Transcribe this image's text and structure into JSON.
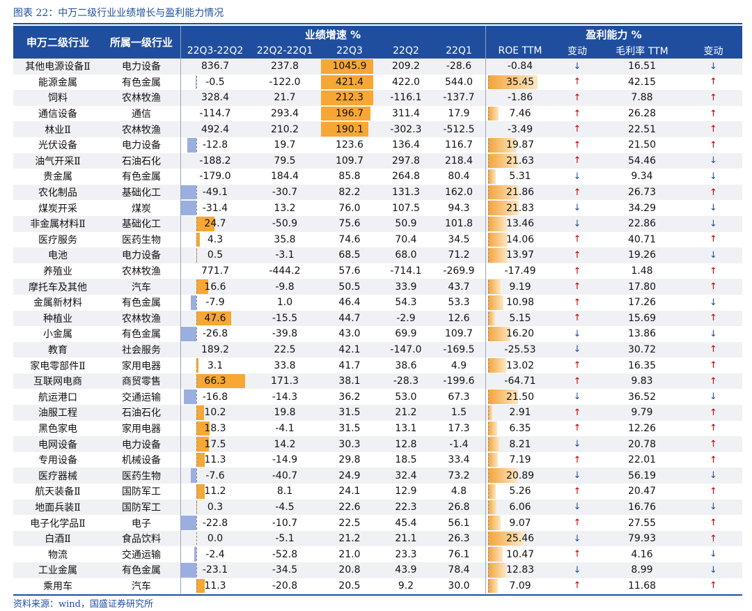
{
  "caption": "图表 22：中万二级行业业绩增长与盈利能力情况",
  "headers": {
    "col_industry": "申万二级行业",
    "col_parent": "所属一级行业",
    "group_growth": "业绩增速 %",
    "group_profit": "盈利能力 %",
    "sub": [
      "22Q3-22Q2",
      "22Q2-22Q1",
      "22Q3",
      "22Q2",
      "22Q1",
      "ROE TTM",
      "变动",
      "毛利率 TTM",
      "变动"
    ]
  },
  "rows": [
    {
      "name": "其他电源设备Ⅱ",
      "parent": "电力设备",
      "qoq32": "836.7",
      "qoq21": "237.8",
      "q3": "1045.9",
      "q2": "209.2",
      "q1": "-28.6",
      "roe": "-0.84",
      "roe_chg": "↓",
      "gm": "16.51",
      "gm_chg": "↓"
    },
    {
      "name": "能源金属",
      "parent": "有色金属",
      "qoq32": "-0.5",
      "qoq21": "-122.0",
      "q3": "421.4",
      "q2": "422.0",
      "q1": "544.0",
      "roe": "35.45",
      "roe_chg": "↑",
      "gm": "42.15",
      "gm_chg": "↑"
    },
    {
      "name": "饲料",
      "parent": "农林牧渔",
      "qoq32": "328.4",
      "qoq21": "21.7",
      "q3": "212.3",
      "q2": "-116.1",
      "q1": "-137.7",
      "roe": "-1.86",
      "roe_chg": "↑",
      "gm": "7.88",
      "gm_chg": "↑"
    },
    {
      "name": "通信设备",
      "parent": "通信",
      "qoq32": "-114.7",
      "qoq21": "293.4",
      "q3": "196.7",
      "q2": "311.4",
      "q1": "17.9",
      "roe": "7.46",
      "roe_chg": "↑",
      "gm": "26.28",
      "gm_chg": "↑"
    },
    {
      "name": "林业Ⅱ",
      "parent": "农林牧渔",
      "qoq32": "492.4",
      "qoq21": "210.2",
      "q3": "190.1",
      "q2": "-302.3",
      "q1": "-512.5",
      "roe": "-3.49",
      "roe_chg": "↑",
      "gm": "22.51",
      "gm_chg": "↑"
    },
    {
      "name": "光伏设备",
      "parent": "电力设备",
      "qoq32": "-12.8",
      "qoq21": "19.7",
      "q3": "123.6",
      "q2": "136.4",
      "q1": "116.7",
      "roe": "19.87",
      "roe_chg": "↑",
      "gm": "21.50",
      "gm_chg": "↑"
    },
    {
      "name": "油气开采Ⅱ",
      "parent": "石油石化",
      "qoq32": "-188.2",
      "qoq21": "79.5",
      "q3": "109.7",
      "q2": "297.8",
      "q1": "218.4",
      "roe": "21.63",
      "roe_chg": "↑",
      "gm": "54.46",
      "gm_chg": "↓"
    },
    {
      "name": "贵金属",
      "parent": "有色金属",
      "qoq32": "-179.0",
      "qoq21": "184.4",
      "q3": "85.8",
      "q2": "264.8",
      "q1": "80.4",
      "roe": "5.31",
      "roe_chg": "↓",
      "gm": "9.34",
      "gm_chg": "↓"
    },
    {
      "name": "农化制品",
      "parent": "基础化工",
      "qoq32": "-49.1",
      "qoq21": "-30.7",
      "q3": "82.2",
      "q2": "131.3",
      "q1": "162.0",
      "roe": "21.86",
      "roe_chg": "↑",
      "gm": "26.73",
      "gm_chg": "↑"
    },
    {
      "name": "煤炭开采",
      "parent": "煤炭",
      "qoq32": "-31.4",
      "qoq21": "13.2",
      "q3": "76.0",
      "q2": "107.5",
      "q1": "94.3",
      "roe": "21.83",
      "roe_chg": "↓",
      "gm": "34.29",
      "gm_chg": "↓"
    },
    {
      "name": "非金属材料Ⅱ",
      "parent": "基础化工",
      "qoq32": "24.7",
      "qoq21": "-50.9",
      "q3": "75.6",
      "q2": "50.9",
      "q1": "101.8",
      "roe": "13.46",
      "roe_chg": "↓",
      "gm": "22.86",
      "gm_chg": "↓"
    },
    {
      "name": "医疗服务",
      "parent": "医药生物",
      "qoq32": "4.3",
      "qoq21": "35.8",
      "q3": "74.6",
      "q2": "70.4",
      "q1": "34.5",
      "roe": "14.06",
      "roe_chg": "↑",
      "gm": "40.71",
      "gm_chg": "↑"
    },
    {
      "name": "电池",
      "parent": "电力设备",
      "qoq32": "0.5",
      "qoq21": "-3.1",
      "q3": "68.5",
      "q2": "68.0",
      "q1": "71.2",
      "roe": "13.97",
      "roe_chg": "↑",
      "gm": "19.26",
      "gm_chg": "↓"
    },
    {
      "name": "养殖业",
      "parent": "农林牧渔",
      "qoq32": "771.7",
      "qoq21": "-444.2",
      "q3": "57.6",
      "q2": "-714.1",
      "q1": "-269.9",
      "roe": "-17.49",
      "roe_chg": "↑",
      "gm": "1.48",
      "gm_chg": "↑"
    },
    {
      "name": "摩托车及其他",
      "parent": "汽车",
      "qoq32": "16.6",
      "qoq21": "-9.8",
      "q3": "50.5",
      "q2": "33.9",
      "q1": "43.7",
      "roe": "9.19",
      "roe_chg": "↑",
      "gm": "17.80",
      "gm_chg": "↑"
    },
    {
      "name": "金属新材料",
      "parent": "有色金属",
      "qoq32": "-7.9",
      "qoq21": "1.0",
      "q3": "46.4",
      "q2": "54.3",
      "q1": "53.3",
      "roe": "10.98",
      "roe_chg": "↑",
      "gm": "17.26",
      "gm_chg": "↓"
    },
    {
      "name": "种植业",
      "parent": "农林牧渔",
      "qoq32": "47.6",
      "qoq21": "-15.5",
      "q3": "44.7",
      "q2": "-2.9",
      "q1": "12.6",
      "roe": "5.15",
      "roe_chg": "↑",
      "gm": "15.69",
      "gm_chg": "↑"
    },
    {
      "name": "小金属",
      "parent": "有色金属",
      "qoq32": "-26.8",
      "qoq21": "-39.8",
      "q3": "43.0",
      "q2": "69.9",
      "q1": "109.7",
      "roe": "16.20",
      "roe_chg": "↓",
      "gm": "13.86",
      "gm_chg": "↓"
    },
    {
      "name": "教育",
      "parent": "社会服务",
      "qoq32": "189.2",
      "qoq21": "22.5",
      "q3": "42.1",
      "q2": "-147.0",
      "q1": "-169.5",
      "roe": "-25.53",
      "roe_chg": "↓",
      "gm": "30.72",
      "gm_chg": "↑"
    },
    {
      "name": "家电零部件Ⅱ",
      "parent": "家用电器",
      "qoq32": "3.1",
      "qoq21": "33.8",
      "q3": "41.7",
      "q2": "38.6",
      "q1": "4.9",
      "roe": "13.02",
      "roe_chg": "↑",
      "gm": "16.35",
      "gm_chg": "↑"
    },
    {
      "name": "互联网电商",
      "parent": "商贸零售",
      "qoq32": "66.3",
      "qoq21": "171.3",
      "q3": "38.1",
      "q2": "-28.3",
      "q1": "-199.6",
      "roe": "-64.71",
      "roe_chg": "↑",
      "gm": "9.83",
      "gm_chg": "↑"
    },
    {
      "name": "航运港口",
      "parent": "交通运输",
      "qoq32": "-16.8",
      "qoq21": "-14.3",
      "q3": "36.2",
      "q2": "53.0",
      "q1": "67.3",
      "roe": "21.50",
      "roe_chg": "↓",
      "gm": "36.52",
      "gm_chg": "↓"
    },
    {
      "name": "油服工程",
      "parent": "石油石化",
      "qoq32": "10.2",
      "qoq21": "19.8",
      "q3": "31.5",
      "q2": "21.2",
      "q1": "1.5",
      "roe": "2.91",
      "roe_chg": "↑",
      "gm": "9.79",
      "gm_chg": "↑"
    },
    {
      "name": "黑色家电",
      "parent": "家用电器",
      "qoq32": "18.3",
      "qoq21": "-4.1",
      "q3": "31.5",
      "q2": "13.1",
      "q1": "17.3",
      "roe": "6.35",
      "roe_chg": "↑",
      "gm": "12.26",
      "gm_chg": "↑"
    },
    {
      "name": "电网设备",
      "parent": "电力设备",
      "qoq32": "17.5",
      "qoq21": "14.2",
      "q3": "30.3",
      "q2": "12.8",
      "q1": "-1.4",
      "roe": "8.21",
      "roe_chg": "↓",
      "gm": "20.78",
      "gm_chg": "↑"
    },
    {
      "name": "专用设备",
      "parent": "机械设备",
      "qoq32": "11.3",
      "qoq21": "-14.9",
      "q3": "29.8",
      "q2": "18.5",
      "q1": "33.4",
      "roe": "7.19",
      "roe_chg": "↑",
      "gm": "22.01",
      "gm_chg": "↑"
    },
    {
      "name": "医疗器械",
      "parent": "医药生物",
      "qoq32": "-7.6",
      "qoq21": "-40.7",
      "q3": "24.9",
      "q2": "32.4",
      "q1": "73.2",
      "roe": "20.89",
      "roe_chg": "↓",
      "gm": "56.19",
      "gm_chg": "↓"
    },
    {
      "name": "航天装备Ⅱ",
      "parent": "国防军工",
      "qoq32": "11.2",
      "qoq21": "8.1",
      "q3": "24.1",
      "q2": "12.9",
      "q1": "4.8",
      "roe": "5.26",
      "roe_chg": "↑",
      "gm": "20.47",
      "gm_chg": "↑"
    },
    {
      "name": "地面兵装Ⅱ",
      "parent": "国防军工",
      "qoq32": "0.3",
      "qoq21": "-4.5",
      "q3": "22.6",
      "q2": "22.3",
      "q1": "26.8",
      "roe": "6.06",
      "roe_chg": "↓",
      "gm": "16.76",
      "gm_chg": "↓"
    },
    {
      "name": "电子化学品Ⅱ",
      "parent": "电子",
      "qoq32": "-22.8",
      "qoq21": "-10.7",
      "q3": "22.5",
      "q2": "45.4",
      "q1": "56.1",
      "roe": "9.07",
      "roe_chg": "↑",
      "gm": "27.55",
      "gm_chg": "↑"
    },
    {
      "name": "白酒Ⅱ",
      "parent": "食品饮料",
      "qoq32": "0.0",
      "qoq21": "-5.1",
      "q3": "21.2",
      "q2": "21.1",
      "q1": "26.3",
      "roe": "25.46",
      "roe_chg": "↓",
      "gm": "79.93",
      "gm_chg": "↑"
    },
    {
      "name": "物流",
      "parent": "交通运输",
      "qoq32": "-2.4",
      "qoq21": "-52.8",
      "q3": "21.0",
      "q2": "23.3",
      "q1": "76.1",
      "roe": "10.47",
      "roe_chg": "↑",
      "gm": "4.16",
      "gm_chg": "↓"
    },
    {
      "name": "工业金属",
      "parent": "有色金属",
      "qoq32": "-23.1",
      "qoq21": "-34.5",
      "q3": "20.8",
      "q2": "43.9",
      "q1": "78.4",
      "roe": "12.83",
      "roe_chg": "↓",
      "gm": "8.99",
      "gm_chg": "↓"
    },
    {
      "name": "乘用车",
      "parent": "汽车",
      "qoq32": "11.3",
      "qoq21": "-20.8",
      "q3": "20.5",
      "q2": "9.2",
      "q1": "30.0",
      "roe": "7.09",
      "roe_chg": "↑",
      "gm": "11.68",
      "gm_chg": "↑"
    }
  ],
  "source": "资料来源：wind，国盛证券研究所"
}
